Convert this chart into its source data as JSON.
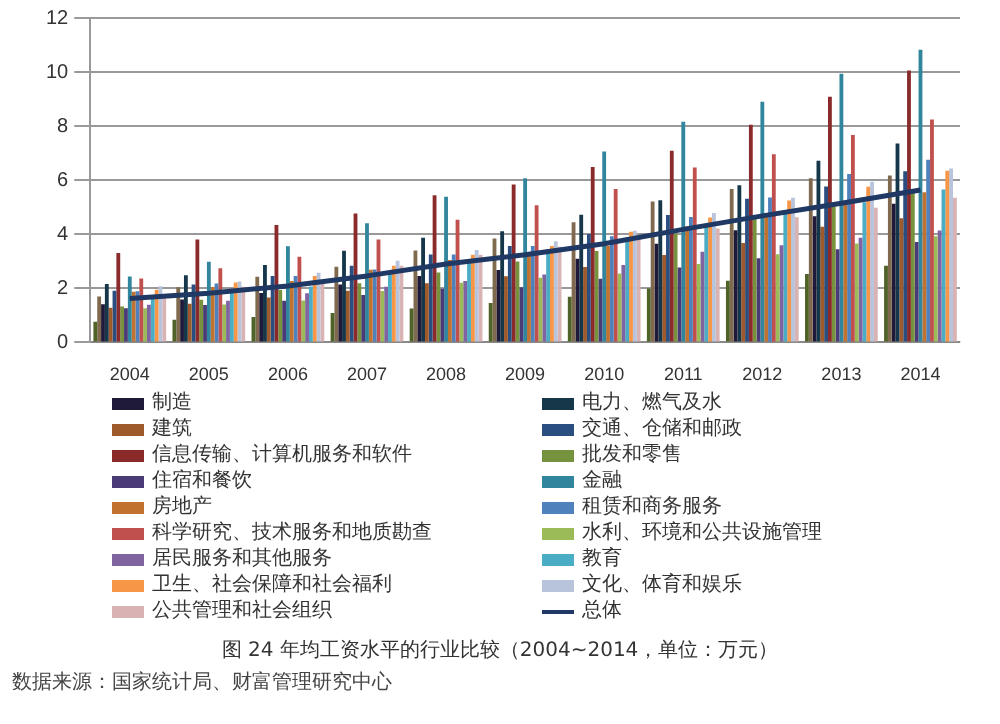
{
  "chart_data": {
    "type": "bar",
    "title": "图 24 年均工资水平的行业比较（2004~2014，单位：万元）",
    "annotations": [
      "数据来源：国家统计局、财富管理研究中心"
    ],
    "categories": [
      "2004",
      "2005",
      "2006",
      "2007",
      "2008",
      "2009",
      "2010",
      "2011",
      "2012",
      "2013",
      "2014"
    ],
    "ylim": [
      0,
      12
    ],
    "yticks": [
      0,
      2,
      4,
      6,
      8,
      10,
      12
    ],
    "grid": "y",
    "legend": "bottom",
    "series": [
      {
        "color": "#4f6228",
        "values": [
          0.76,
          0.84,
          0.94,
          1.09,
          1.25,
          1.46,
          1.69,
          1.99,
          2.28,
          2.53,
          2.84
        ]
      },
      {
        "color": "#7f6a4f",
        "values": [
          1.7,
          2.04,
          2.43,
          2.8,
          3.4,
          3.84,
          4.44,
          5.21,
          5.67,
          6.07,
          6.17
        ]
      },
      {
        "name": "制造",
        "color": "#1f1a3a",
        "values": [
          1.41,
          1.59,
          1.83,
          2.14,
          2.46,
          2.68,
          3.09,
          3.65,
          4.15,
          4.67,
          5.13
        ]
      },
      {
        "name": "电力、燃气及水",
        "color": "#16374a",
        "values": [
          2.16,
          2.48,
          2.86,
          3.39,
          3.87,
          4.11,
          4.72,
          5.26,
          5.81,
          6.72,
          7.36
        ]
      },
      {
        "name": "建筑",
        "color": "#9e5a2a",
        "values": [
          1.28,
          1.43,
          1.66,
          1.91,
          2.19,
          2.45,
          2.79,
          3.23,
          3.68,
          4.28,
          4.59
        ]
      },
      {
        "name": "交通、仓储和邮政",
        "color": "#2a4e80",
        "values": [
          1.91,
          2.14,
          2.46,
          2.84,
          3.25,
          3.57,
          4.01,
          4.71,
          5.31,
          5.77,
          6.33
        ]
      },
      {
        "name": "信息传输、计算机服务和软件",
        "color": "#8b2a2a",
        "values": [
          3.31,
          3.81,
          4.34,
          4.77,
          5.44,
          5.84,
          6.49,
          7.09,
          8.05,
          9.09,
          10.06
        ]
      },
      {
        "name": "批发和零售",
        "color": "#76923c",
        "values": [
          1.33,
          1.58,
          1.94,
          2.19,
          2.59,
          2.99,
          3.38,
          4.03,
          4.63,
          5.03,
          5.53
        ]
      },
      {
        "name": "住宿和餐饮",
        "color": "#4b3a78",
        "values": [
          1.26,
          1.38,
          1.54,
          1.75,
          1.98,
          2.04,
          2.35,
          2.77,
          3.11,
          3.45,
          3.71
        ]
      },
      {
        "name": "金融",
        "color": "#31859c",
        "values": [
          2.44,
          2.98,
          3.56,
          4.41,
          5.39,
          6.07,
          7.06,
          8.16,
          8.9,
          9.94,
          10.83
        ]
      },
      {
        "name": "房地产",
        "color": "#c0722e",
        "values": [
          1.87,
          2.05,
          2.27,
          2.69,
          3.05,
          3.27,
          3.57,
          4.29,
          4.67,
          5.13,
          5.55
        ]
      },
      {
        "name": "租赁和商务服务",
        "color": "#4f81bd",
        "values": [
          1.89,
          2.18,
          2.46,
          2.7,
          3.25,
          3.57,
          3.93,
          4.64,
          5.36,
          6.23,
          6.76
        ]
      },
      {
        "name": "科学研究、技术服务和地质勘查",
        "color": "#c0504d",
        "values": [
          2.36,
          2.74,
          3.17,
          3.81,
          4.54,
          5.07,
          5.67,
          6.47,
          6.96,
          7.67,
          8.25
        ]
      },
      {
        "name": "水利、环境和公共设施管理",
        "color": "#9bbb59",
        "values": [
          1.26,
          1.4,
          1.55,
          1.9,
          2.21,
          2.39,
          2.55,
          2.9,
          3.26,
          3.66,
          3.93
        ]
      },
      {
        "name": "居民服务和其他服务",
        "color": "#8064a2",
        "values": [
          1.39,
          1.54,
          1.82,
          2.06,
          2.27,
          2.51,
          2.86,
          3.35,
          3.59,
          3.87,
          4.14
        ]
      },
      {
        "name": "教育",
        "color": "#4bacc6",
        "values": [
          1.69,
          1.86,
          2.07,
          2.59,
          2.99,
          3.45,
          3.88,
          4.32,
          4.77,
          5.18,
          5.66
        ]
      },
      {
        "name": "卫生、社会保障和社会福利",
        "color": "#f79646",
        "values": [
          1.95,
          2.22,
          2.46,
          2.84,
          3.24,
          3.57,
          4.09,
          4.62,
          5.25,
          5.76,
          6.35
        ]
      },
      {
        "name": "文化、体育和娱乐",
        "color": "#b7c4dc",
        "values": [
          2.08,
          2.25,
          2.58,
          3.02,
          3.42,
          3.74,
          4.13,
          4.79,
          5.35,
          5.94,
          6.43
        ]
      },
      {
        "name": "公共管理和社会组织",
        "color": "#d9b3b3",
        "values": [
          1.74,
          2.06,
          2.27,
          2.84,
          3.24,
          3.54,
          3.83,
          4.21,
          4.63,
          4.98,
          5.35
        ]
      },
      {
        "name": "总体",
        "type": "line",
        "color": "#1f3864",
        "values": [
          1.62,
          1.82,
          2.09,
          2.46,
          2.9,
          3.24,
          3.65,
          4.18,
          4.68,
          5.15,
          5.64
        ]
      }
    ]
  }
}
